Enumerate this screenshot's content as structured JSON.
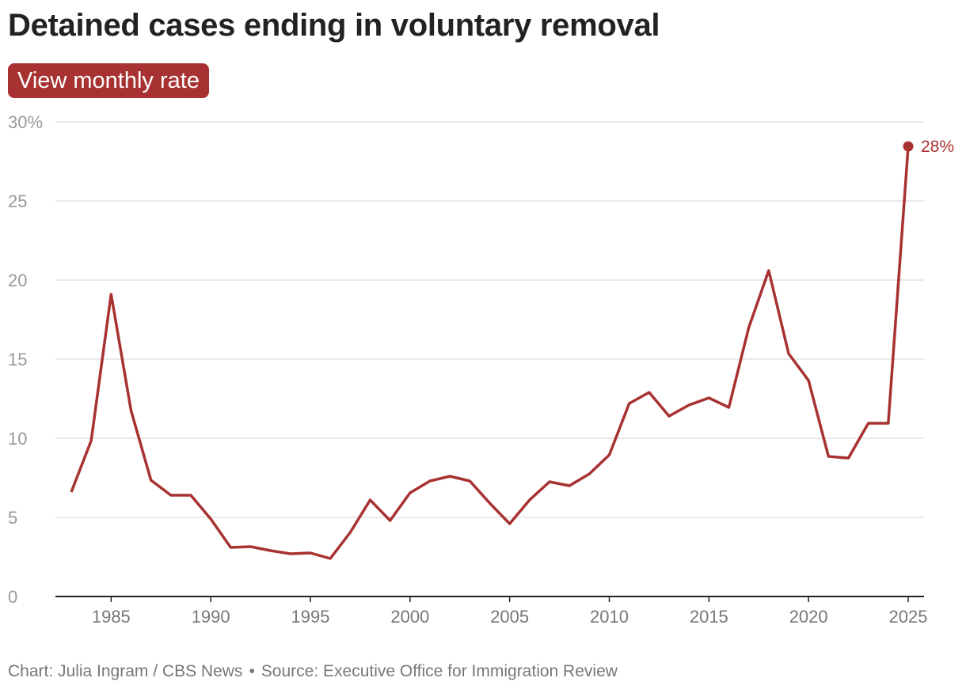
{
  "chart_data": {
    "type": "line",
    "title": "Detained cases ending in voluntary removal",
    "x": [
      1983,
      1984,
      1985,
      1986,
      1987,
      1988,
      1989,
      1990,
      1991,
      1992,
      1993,
      1994,
      1995,
      1996,
      1997,
      1998,
      1999,
      2000,
      2001,
      2002,
      2003,
      2004,
      2005,
      2006,
      2007,
      2008,
      2009,
      2010,
      2011,
      2012,
      2013,
      2014,
      2015,
      2016,
      2017,
      2018,
      2019,
      2020,
      2021,
      2022,
      2023,
      2024,
      2025
    ],
    "series": [
      {
        "values": [
          6.6,
          9.85,
          19.1,
          11.75,
          7.35,
          6.4,
          6.4,
          4.9,
          3.1,
          3.15,
          2.9,
          2.7,
          2.75,
          2.4,
          4.05,
          6.1,
          4.8,
          6.55,
          7.3,
          7.6,
          7.3,
          5.9,
          4.6,
          6.1,
          7.25,
          7.0,
          7.75,
          8.95,
          12.2,
          12.9,
          11.4,
          12.1,
          12.55,
          11.95,
          17.0,
          20.6,
          15.35,
          13.65,
          8.85,
          8.75,
          10.95,
          10.95,
          28.45
        ],
        "color": "#a83232"
      }
    ],
    "ylim": [
      0,
      30
    ],
    "y_ticks": [
      0,
      5,
      10,
      15,
      20,
      25,
      30
    ],
    "y_tick_labels": [
      "0",
      "5",
      "10",
      "15",
      "20",
      "25",
      "30%"
    ],
    "x_ticks": [
      1985,
      1990,
      1995,
      2000,
      2005,
      2010,
      2015,
      2020,
      2025
    ],
    "x_tick_labels": [
      "1985",
      "1990",
      "1995",
      "2000",
      "2005",
      "2010",
      "2015",
      "2020",
      "2025"
    ],
    "end_label": "28%",
    "grid": "horizontal"
  },
  "button": {
    "label": "View monthly rate"
  },
  "credit": {
    "chart": "Chart: Julia Ingram / CBS News",
    "separator": "•",
    "source": "Source: Executive Office for Immigration Review"
  }
}
